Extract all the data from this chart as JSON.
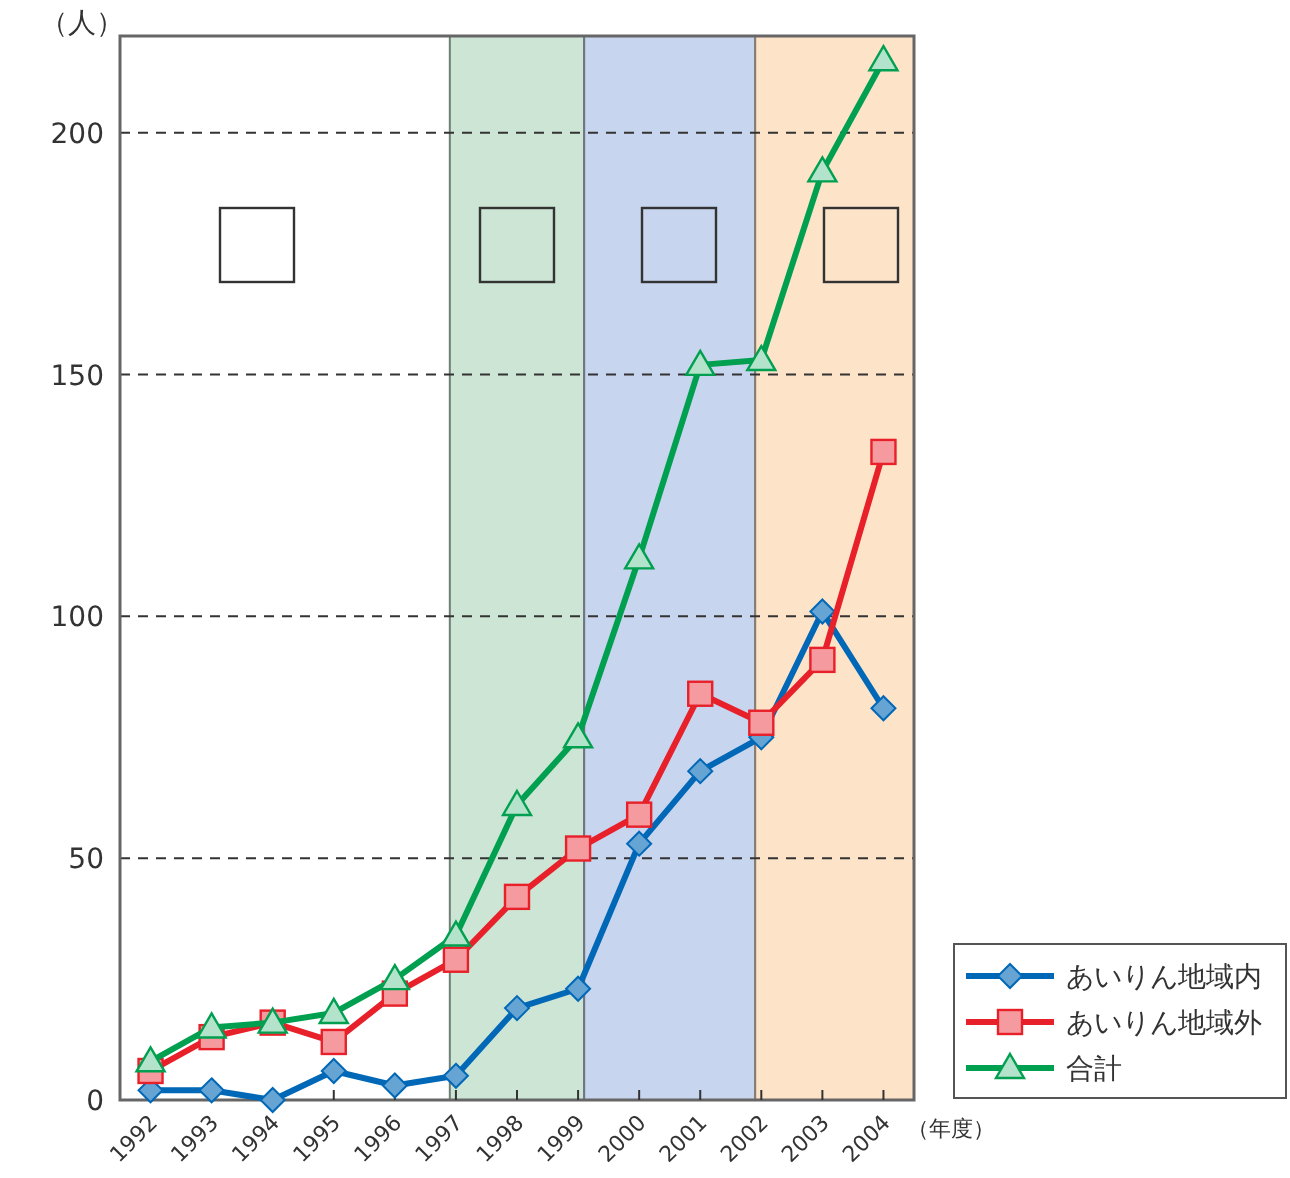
{
  "chart_data": {
    "type": "line",
    "ylabel": "（人）",
    "xlabel": "（年度）",
    "x": [
      1992,
      1993,
      1994,
      1995,
      1996,
      1997,
      1998,
      1999,
      2000,
      2001,
      2002,
      2003,
      2004
    ],
    "xlim": [
      1991.5,
      2004.5
    ],
    "xticks": [
      1992,
      1993,
      1994,
      1995,
      1996,
      1997,
      1998,
      1999,
      2000,
      2001,
      2002,
      2003,
      2004
    ],
    "ylim": [
      0,
      220
    ],
    "yticks": [
      0,
      50,
      100,
      150,
      200
    ],
    "grid": "y",
    "legend": "bottom right",
    "bands": [
      {
        "axis": "x",
        "from": 1996.9,
        "to": 1999.1,
        "color": "#cce5d4"
      },
      {
        "axis": "x",
        "from": 1999.1,
        "to": 2001.9,
        "color": "#c8d5ee"
      },
      {
        "axis": "x",
        "from": 2001.9,
        "to": 2004.5,
        "color": "#fde3c8"
      }
    ],
    "series": [
      {
        "name": "あいりん地域内",
        "color": "#0068b7",
        "marker": "diamond",
        "values": [
          2,
          2,
          0,
          6,
          3,
          5,
          19,
          23,
          53,
          68,
          75,
          101,
          81
        ]
      },
      {
        "name": "あいりん地域外",
        "color": "#e8202a",
        "marker": "square",
        "values": [
          6,
          13,
          16,
          12,
          22,
          29,
          42,
          52,
          59,
          84,
          78,
          91,
          134
        ]
      },
      {
        "name": "合計",
        "color": "#00a050",
        "marker": "triangle",
        "values": [
          8,
          15,
          16,
          18,
          25,
          34,
          61,
          75,
          112,
          152,
          153,
          192,
          215
        ]
      }
    ]
  }
}
